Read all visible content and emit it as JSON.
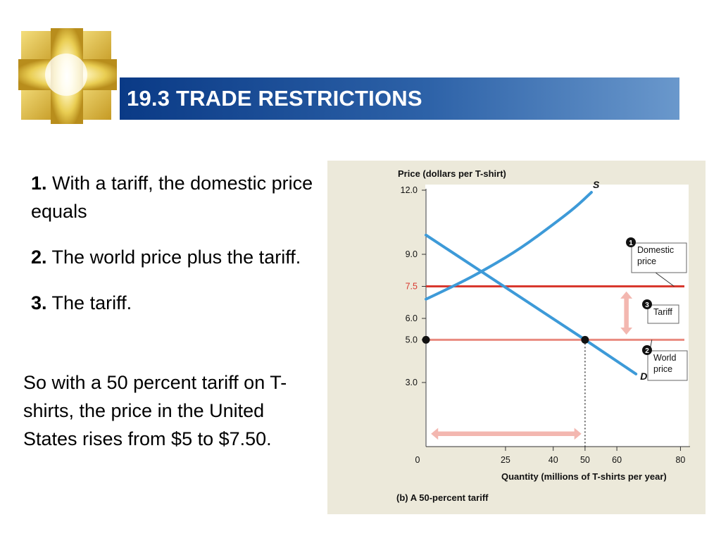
{
  "header": {
    "title": "19.3 TRADE RESTRICTIONS"
  },
  "bullets": [
    {
      "num": "1.",
      "text": "With a tariff, the domestic price equals"
    },
    {
      "num": "2.",
      "text": "The world price plus the tariff."
    },
    {
      "num": "3.",
      "text": "The tariff."
    }
  ],
  "summary": "So with a 50 percent tariff on T-shirts, the price in the United States rises from $5 to $7.50.",
  "chart_data": {
    "type": "line",
    "ylabel": "Price (dollars per T-shirt)",
    "xlabel": "Quantity (millions of T-shirts per year)",
    "caption": "(b) A 50-percent tariff",
    "x_ticks": [
      {
        "value": 0,
        "label": "0"
      },
      {
        "value": 25,
        "label": "25"
      },
      {
        "value": 40,
        "label": "40"
      },
      {
        "value": 50,
        "label": "50"
      },
      {
        "value": 60,
        "label": "60"
      },
      {
        "value": 80,
        "label": "80"
      }
    ],
    "y_ticks": [
      {
        "value": 3.0,
        "label": "3.0"
      },
      {
        "value": 5.0,
        "label": "5.0"
      },
      {
        "value": 6.0,
        "label": "6.0"
      },
      {
        "value": 7.5,
        "label": "7.5",
        "color": "#d8382e"
      },
      {
        "value": 9.0,
        "label": "9.0"
      },
      {
        "value": 12.0,
        "label": "12.0"
      }
    ],
    "xlim": [
      0,
      83
    ],
    "ylim": [
      0,
      12.0
    ],
    "series": [
      {
        "name": "S",
        "color": "#3d9ad8",
        "points": [
          [
            0,
            6.9
          ],
          [
            10,
            7.6
          ],
          [
            20,
            8.4
          ],
          [
            30,
            9.3
          ],
          [
            40,
            10.4
          ],
          [
            47,
            11.2
          ],
          [
            52,
            11.9
          ]
        ]
      },
      {
        "name": "D",
        "color": "#3d9ad8",
        "points": [
          [
            0,
            9.9
          ],
          [
            50,
            5.0
          ],
          [
            66,
            3.4
          ]
        ]
      }
    ],
    "hlines": [
      {
        "value": 7.5,
        "color": "#d8382e"
      },
      {
        "value": 5.0,
        "color": "#e98b80"
      }
    ],
    "points": [
      {
        "x": 0,
        "y": 5.0
      },
      {
        "x": 50,
        "y": 5.0
      }
    ],
    "vline": {
      "x": 50,
      "from": 0,
      "to": 5.0
    },
    "quantity_arrow": {
      "from": 0,
      "to": 50,
      "y": 0.6,
      "color": "#f3b7b0"
    },
    "tariff_arrow": {
      "x": 63,
      "from": 5.2,
      "to": 7.3,
      "color": "#f3b7b0"
    },
    "callouts": [
      {
        "num": "1",
        "lines": [
          "Domestic",
          "price"
        ]
      },
      {
        "num": "3",
        "lines": [
          "Tariff"
        ]
      },
      {
        "num": "2",
        "lines": [
          "World",
          "price"
        ]
      }
    ]
  }
}
